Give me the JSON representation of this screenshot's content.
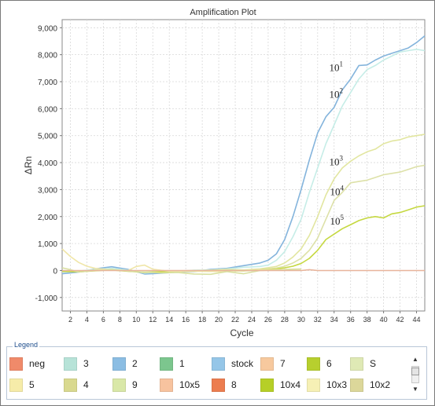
{
  "chart_data": {
    "type": "line",
    "title": "Amplification Plot",
    "xlabel": "Cycle",
    "ylabel": "ΔRn",
    "xlim": [
      1,
      45
    ],
    "ylim": [
      -1500,
      9300
    ],
    "x_ticks": [
      "2",
      "4",
      "6",
      "8",
      "10",
      "12",
      "14",
      "16",
      "18",
      "20",
      "22",
      "24",
      "26",
      "28",
      "30",
      "32",
      "34",
      "36",
      "38",
      "40",
      "42",
      "44"
    ],
    "y_ticks": [
      "-1,000",
      "0",
      "1,000",
      "2,000",
      "3,000",
      "4,000",
      "5,000",
      "6,000",
      "7,000",
      "8,000",
      "9,000"
    ],
    "grid": true,
    "series": [
      {
        "name": "stock",
        "color": "#84b4dc",
        "points": [
          [
            1,
            -120
          ],
          [
            3,
            -60
          ],
          [
            5,
            60
          ],
          [
            7,
            140
          ],
          [
            9,
            40
          ],
          [
            11,
            -130
          ],
          [
            13,
            -100
          ],
          [
            15,
            -60
          ],
          [
            17,
            -40
          ],
          [
            19,
            40
          ],
          [
            21,
            80
          ],
          [
            23,
            180
          ],
          [
            25,
            280
          ],
          [
            26,
            380
          ],
          [
            27,
            620
          ],
          [
            28,
            1150
          ],
          [
            29,
            2000
          ],
          [
            30,
            3000
          ],
          [
            31,
            4100
          ],
          [
            32,
            5100
          ],
          [
            33,
            5700
          ],
          [
            34,
            6050
          ],
          [
            35,
            6700
          ],
          [
            36,
            7100
          ],
          [
            37,
            7600
          ],
          [
            38,
            7620
          ],
          [
            39,
            7800
          ],
          [
            40,
            7950
          ],
          [
            41,
            8050
          ],
          [
            42,
            8150
          ],
          [
            43,
            8250
          ],
          [
            44,
            8450
          ],
          [
            45,
            8700
          ]
        ]
      },
      {
        "name": "10x2",
        "color": "#c6ede7",
        "points": [
          [
            1,
            -60
          ],
          [
            3,
            -20
          ],
          [
            5,
            40
          ],
          [
            7,
            80
          ],
          [
            9,
            10
          ],
          [
            11,
            -90
          ],
          [
            13,
            -60
          ],
          [
            15,
            -30
          ],
          [
            17,
            10
          ],
          [
            19,
            20
          ],
          [
            21,
            60
          ],
          [
            23,
            120
          ],
          [
            25,
            150
          ],
          [
            26,
            200
          ],
          [
            27,
            380
          ],
          [
            28,
            700
          ],
          [
            29,
            1250
          ],
          [
            30,
            1900
          ],
          [
            31,
            2900
          ],
          [
            32,
            3800
          ],
          [
            33,
            4700
          ],
          [
            34,
            5400
          ],
          [
            35,
            6100
          ],
          [
            36,
            6600
          ],
          [
            37,
            7100
          ],
          [
            38,
            7450
          ],
          [
            39,
            7600
          ],
          [
            40,
            7800
          ],
          [
            41,
            7950
          ],
          [
            42,
            8100
          ],
          [
            43,
            8150
          ],
          [
            44,
            8200
          ],
          [
            45,
            8150
          ]
        ]
      },
      {
        "name": "10x3",
        "color": "#e2e6a0",
        "points": [
          [
            1,
            -40
          ],
          [
            3,
            -40
          ],
          [
            5,
            10
          ],
          [
            7,
            40
          ],
          [
            9,
            -20
          ],
          [
            11,
            -80
          ],
          [
            13,
            -50
          ],
          [
            15,
            -20
          ],
          [
            17,
            -10
          ],
          [
            19,
            10
          ],
          [
            21,
            40
          ],
          [
            23,
            20
          ],
          [
            25,
            60
          ],
          [
            27,
            150
          ],
          [
            28,
            280
          ],
          [
            29,
            500
          ],
          [
            30,
            800
          ],
          [
            31,
            1300
          ],
          [
            32,
            2000
          ],
          [
            33,
            2800
          ],
          [
            34,
            3400
          ],
          [
            35,
            3800
          ],
          [
            36,
            4050
          ],
          [
            37,
            4250
          ],
          [
            38,
            4400
          ],
          [
            39,
            4500
          ],
          [
            40,
            4700
          ],
          [
            41,
            4800
          ],
          [
            42,
            4850
          ],
          [
            43,
            4950
          ],
          [
            44,
            5000
          ],
          [
            45,
            5050
          ]
        ]
      },
      {
        "name": "10x4",
        "color": "#dde1a8",
        "points": [
          [
            1,
            -20
          ],
          [
            3,
            -30
          ],
          [
            5,
            20
          ],
          [
            7,
            30
          ],
          [
            9,
            -10
          ],
          [
            11,
            -70
          ],
          [
            13,
            -40
          ],
          [
            15,
            -10
          ],
          [
            17,
            0
          ],
          [
            19,
            -20
          ],
          [
            21,
            20
          ],
          [
            23,
            10
          ],
          [
            25,
            30
          ],
          [
            27,
            90
          ],
          [
            28,
            160
          ],
          [
            29,
            280
          ],
          [
            30,
            450
          ],
          [
            31,
            750
          ],
          [
            32,
            1200
          ],
          [
            33,
            1900
          ],
          [
            34,
            2600
          ],
          [
            35,
            2900
          ],
          [
            36,
            3250
          ],
          [
            37,
            3300
          ],
          [
            38,
            3350
          ],
          [
            39,
            3450
          ],
          [
            40,
            3550
          ],
          [
            41,
            3600
          ],
          [
            42,
            3650
          ],
          [
            43,
            3750
          ],
          [
            44,
            3850
          ],
          [
            45,
            3900
          ]
        ]
      },
      {
        "name": "10x5",
        "color": "#c5d840",
        "points": [
          [
            1,
            -30
          ],
          [
            3,
            -50
          ],
          [
            5,
            -10
          ],
          [
            7,
            20
          ],
          [
            9,
            -30
          ],
          [
            11,
            -60
          ],
          [
            13,
            -50
          ],
          [
            15,
            -30
          ],
          [
            17,
            -20
          ],
          [
            19,
            -30
          ],
          [
            21,
            -10
          ],
          [
            23,
            -10
          ],
          [
            25,
            20
          ],
          [
            27,
            60
          ],
          [
            28,
            100
          ],
          [
            29,
            160
          ],
          [
            30,
            260
          ],
          [
            31,
            450
          ],
          [
            32,
            750
          ],
          [
            33,
            1150
          ],
          [
            34,
            1350
          ],
          [
            35,
            1550
          ],
          [
            36,
            1700
          ],
          [
            37,
            1850
          ],
          [
            38,
            1950
          ],
          [
            39,
            2000
          ],
          [
            40,
            1950
          ],
          [
            41,
            2100
          ],
          [
            42,
            2150
          ],
          [
            43,
            2250
          ],
          [
            44,
            2350
          ],
          [
            45,
            2400
          ]
        ]
      },
      {
        "name": "S",
        "color": "#f0e6a8",
        "points": [
          [
            1,
            800
          ],
          [
            2,
            520
          ],
          [
            3,
            300
          ],
          [
            4,
            160
          ],
          [
            5,
            80
          ],
          [
            7,
            20
          ],
          [
            9,
            0
          ],
          [
            10,
            150
          ],
          [
            11,
            200
          ],
          [
            12,
            50
          ],
          [
            14,
            -30
          ],
          [
            16,
            -40
          ],
          [
            18,
            -20
          ],
          [
            20,
            -40
          ],
          [
            22,
            0
          ],
          [
            24,
            10
          ],
          [
            26,
            30
          ],
          [
            28,
            40
          ],
          [
            30,
            60
          ]
        ]
      },
      {
        "name": "9",
        "color": "#d8e0a0",
        "points": [
          [
            1,
            100
          ],
          [
            2,
            30
          ],
          [
            3,
            -60
          ],
          [
            5,
            0
          ],
          [
            7,
            30
          ],
          [
            9,
            -20
          ],
          [
            11,
            -60
          ],
          [
            13,
            -90
          ],
          [
            15,
            -70
          ],
          [
            17,
            -130
          ],
          [
            19,
            -140
          ],
          [
            21,
            -40
          ],
          [
            23,
            -120
          ],
          [
            25,
            0
          ],
          [
            27,
            20
          ],
          [
            29,
            40
          ],
          [
            30,
            50
          ]
        ]
      },
      {
        "name": "neg",
        "color": "#e8b49b",
        "points": [
          [
            1,
            0
          ],
          [
            5,
            0
          ],
          [
            10,
            0
          ],
          [
            15,
            0
          ],
          [
            20,
            0
          ],
          [
            25,
            0
          ],
          [
            30,
            0
          ],
          [
            31,
            30
          ],
          [
            32,
            0
          ],
          [
            35,
            0
          ],
          [
            40,
            0
          ],
          [
            45,
            0
          ]
        ]
      }
    ],
    "annotations": [
      {
        "base": "10",
        "exp": "1"
      },
      {
        "base": "10",
        "exp": "2"
      },
      {
        "base": "10",
        "exp": "3"
      },
      {
        "base": "10",
        "exp": "4"
      },
      {
        "base": "10",
        "exp": "5"
      }
    ]
  },
  "legend": {
    "title": "Legend",
    "items": [
      {
        "label": "neg",
        "color": "#f08a6a"
      },
      {
        "label": "3",
        "color": "#b7e3d8"
      },
      {
        "label": "2",
        "color": "#8bbde3"
      },
      {
        "label": "1",
        "color": "#7cc68e"
      },
      {
        "label": "stock",
        "color": "#95c6e8"
      },
      {
        "label": "7",
        "color": "#f7c99e"
      },
      {
        "label": "6",
        "color": "#b7cf2e"
      },
      {
        "label": "S",
        "color": "#dfe9b5"
      },
      {
        "label": "5",
        "color": "#f6eca9"
      },
      {
        "label": "4",
        "color": "#d9d98f"
      },
      {
        "label": "9",
        "color": "#d9e8a8"
      },
      {
        "label": "10x5",
        "color": "#f7c39f"
      },
      {
        "label": "8",
        "color": "#ec7d50"
      },
      {
        "label": "10x4",
        "color": "#b6cf27"
      },
      {
        "label": "10x3",
        "color": "#f6f0b5"
      },
      {
        "label": "10x2",
        "color": "#dcd79a"
      }
    ],
    "scroll_up": "▲",
    "scroll_down": "▼"
  }
}
